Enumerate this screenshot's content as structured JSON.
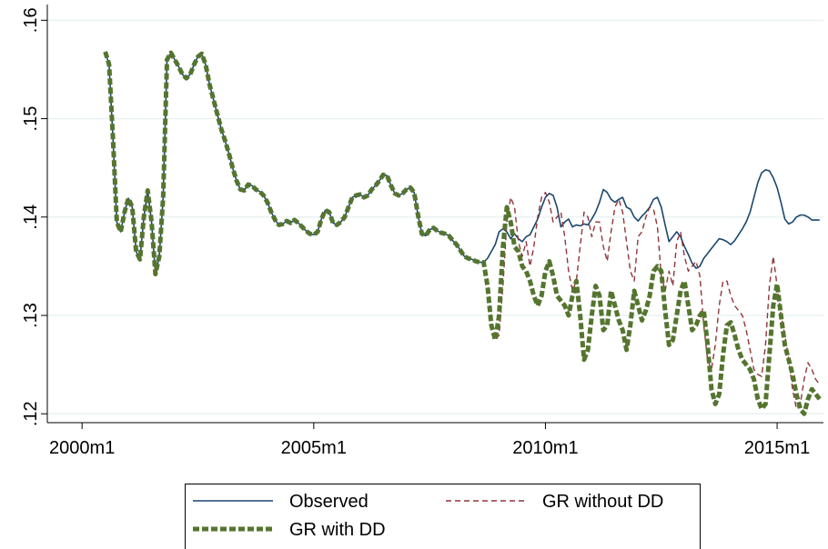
{
  "chart_data": {
    "type": "line",
    "x": [
      "2000m7",
      "2000m8",
      "2000m9",
      "2000m10",
      "2000m11",
      "2000m12",
      "2001m1",
      "2001m2",
      "2001m3",
      "2001m4",
      "2001m5",
      "2001m6",
      "2001m7",
      "2001m8",
      "2001m9",
      "2001m10",
      "2001m11",
      "2001m12",
      "2002m1",
      "2002m2",
      "2002m3",
      "2002m4",
      "2002m5",
      "2002m6",
      "2002m7",
      "2002m8",
      "2002m9",
      "2002m10",
      "2002m11",
      "2002m12",
      "2003m1",
      "2003m2",
      "2003m3",
      "2003m4",
      "2003m5",
      "2003m6",
      "2003m7",
      "2003m8",
      "2003m9",
      "2003m10",
      "2003m11",
      "2003m12",
      "2004m1",
      "2004m2",
      "2004m3",
      "2004m4",
      "2004m5",
      "2004m6",
      "2004m7",
      "2004m8",
      "2004m9",
      "2004m10",
      "2004m11",
      "2004m12",
      "2005m1",
      "2005m2",
      "2005m3",
      "2005m4",
      "2005m5",
      "2005m6",
      "2005m7",
      "2005m8",
      "2005m9",
      "2005m10",
      "2005m11",
      "2005m12",
      "2006m1",
      "2006m2",
      "2006m3",
      "2006m4",
      "2006m5",
      "2006m6",
      "2006m7",
      "2006m8",
      "2006m9",
      "2006m10",
      "2006m11",
      "2006m12",
      "2007m1",
      "2007m2",
      "2007m3",
      "2007m4",
      "2007m5",
      "2007m6",
      "2007m7",
      "2007m8",
      "2007m9",
      "2007m10",
      "2007m11",
      "2007m12",
      "2008m1",
      "2008m2",
      "2008m3",
      "2008m4",
      "2008m5",
      "2008m6",
      "2008m7",
      "2008m8",
      "2008m9",
      "2008m10",
      "2008m11",
      "2008m12",
      "2009m1",
      "2009m2",
      "2009m3",
      "2009m4",
      "2009m5",
      "2009m6",
      "2009m7",
      "2009m8",
      "2009m9",
      "2009m10",
      "2009m11",
      "2009m12",
      "2010m1",
      "2010m2",
      "2010m3",
      "2010m4",
      "2010m5",
      "2010m6",
      "2010m7",
      "2010m8",
      "2010m9",
      "2010m10",
      "2010m11",
      "2010m12",
      "2011m1",
      "2011m2",
      "2011m3",
      "2011m4",
      "2011m5",
      "2011m6",
      "2011m7",
      "2011m8",
      "2011m9",
      "2011m10",
      "2011m11",
      "2011m12",
      "2012m1",
      "2012m2",
      "2012m3",
      "2012m4",
      "2012m5",
      "2012m6",
      "2012m7",
      "2012m8",
      "2012m9",
      "2012m10",
      "2012m11",
      "2012m12",
      "2013m1",
      "2013m2",
      "2013m3",
      "2013m4",
      "2013m5",
      "2013m6",
      "2013m7",
      "2013m8",
      "2013m9",
      "2013m10",
      "2013m11",
      "2013m12",
      "2014m1",
      "2014m2",
      "2014m3",
      "2014m4",
      "2014m5",
      "2014m6",
      "2014m7",
      "2014m8",
      "2014m9",
      "2014m10",
      "2014m11",
      "2014m12",
      "2015m1",
      "2015m2",
      "2015m3",
      "2015m4",
      "2015m5",
      "2015m6",
      "2015m7",
      "2015m8",
      "2015m9",
      "2015m10",
      "2015m11",
      "2015m12"
    ],
    "series": [
      {
        "name": "Observed",
        "color": "#1a476f",
        "style": "solid",
        "values": [
          0.1568,
          0.1555,
          0.148,
          0.1395,
          0.1385,
          0.1405,
          0.1419,
          0.141,
          0.1365,
          0.1357,
          0.14,
          0.1427,
          0.1395,
          0.1342,
          0.136,
          0.142,
          0.156,
          0.1567,
          0.156,
          0.1553,
          0.1545,
          0.1541,
          0.1545,
          0.1555,
          0.1563,
          0.1566,
          0.1555,
          0.1535,
          0.152,
          0.1505,
          0.149,
          0.1478,
          0.1465,
          0.145,
          0.1437,
          0.1428,
          0.1427,
          0.1433,
          0.1432,
          0.1428,
          0.1426,
          0.1422,
          0.1415,
          0.1405,
          0.1397,
          0.1392,
          0.1393,
          0.1396,
          0.1394,
          0.1397,
          0.1394,
          0.139,
          0.1386,
          0.1383,
          0.1382,
          0.1385,
          0.1398,
          0.1407,
          0.1405,
          0.1394,
          0.1392,
          0.1395,
          0.14,
          0.141,
          0.142,
          0.1422,
          0.1423,
          0.142,
          0.1422,
          0.1428,
          0.1432,
          0.1437,
          0.1443,
          0.1442,
          0.1432,
          0.1424,
          0.1422,
          0.1424,
          0.1428,
          0.143,
          0.1425,
          0.1402,
          0.1383,
          0.1381,
          0.1387,
          0.1389,
          0.1386,
          0.1384,
          0.1383,
          0.1381,
          0.1376,
          0.1372,
          0.1366,
          0.136,
          0.1358,
          0.1357,
          0.1355,
          0.1354,
          0.1354,
          0.1358,
          0.1365,
          0.1372,
          0.1385,
          0.1388,
          0.1385,
          0.1378,
          0.1383,
          0.1378,
          0.1375,
          0.138,
          0.1382,
          0.139,
          0.1398,
          0.141,
          0.142,
          0.1424,
          0.1422,
          0.141,
          0.139,
          0.1395,
          0.1398,
          0.139,
          0.1392,
          0.1391,
          0.1393,
          0.1392,
          0.1398,
          0.1405,
          0.1415,
          0.1428,
          0.1425,
          0.1418,
          0.1415,
          0.1418,
          0.142,
          0.141,
          0.1408,
          0.14,
          0.1396,
          0.1401,
          0.1405,
          0.141,
          0.1418,
          0.142,
          0.141,
          0.1392,
          0.1375,
          0.138,
          0.1385,
          0.138,
          0.137,
          0.1362,
          0.1353,
          0.1348,
          0.135,
          0.1358,
          0.1363,
          0.1368,
          0.1373,
          0.1378,
          0.1377,
          0.1375,
          0.1372,
          0.1376,
          0.1382,
          0.1388,
          0.1395,
          0.1405,
          0.142,
          0.1435,
          0.1445,
          0.1448,
          0.1447,
          0.144,
          0.143,
          0.1415,
          0.1398,
          0.1393,
          0.1395,
          0.14,
          0.1402,
          0.1402,
          0.14,
          0.1397,
          0.1397,
          0.1397
        ]
      },
      {
        "name": "GR without DD",
        "color": "#90353b",
        "style": "dashed",
        "values": [
          0.1568,
          0.1555,
          0.148,
          0.1395,
          0.1385,
          0.1405,
          0.1419,
          0.141,
          0.1365,
          0.1357,
          0.14,
          0.1427,
          0.1395,
          0.1342,
          0.136,
          0.142,
          0.156,
          0.1567,
          0.156,
          0.1553,
          0.1545,
          0.1541,
          0.1545,
          0.1555,
          0.1563,
          0.1566,
          0.1555,
          0.1535,
          0.152,
          0.1505,
          0.149,
          0.1478,
          0.1465,
          0.145,
          0.1437,
          0.1428,
          0.1427,
          0.1433,
          0.1432,
          0.1428,
          0.1426,
          0.1422,
          0.1415,
          0.1405,
          0.1397,
          0.1392,
          0.1393,
          0.1396,
          0.1394,
          0.1397,
          0.1394,
          0.139,
          0.1386,
          0.1383,
          0.1382,
          0.1385,
          0.1398,
          0.1407,
          0.1405,
          0.1394,
          0.1392,
          0.1395,
          0.14,
          0.141,
          0.142,
          0.1422,
          0.1423,
          0.142,
          0.1422,
          0.1428,
          0.1432,
          0.1437,
          0.1443,
          0.1442,
          0.1432,
          0.1424,
          0.1422,
          0.1424,
          0.1428,
          0.143,
          0.1425,
          0.1402,
          0.1383,
          0.1381,
          0.1387,
          0.1389,
          0.1386,
          0.1384,
          0.1383,
          0.1381,
          0.1376,
          0.1372,
          0.1366,
          0.136,
          0.1358,
          0.1357,
          0.1355,
          0.1354,
          0.1354,
          0.134,
          0.1295,
          0.1275,
          0.128,
          0.133,
          0.1395,
          0.142,
          0.141,
          0.1375,
          0.136,
          0.1375,
          0.135,
          0.137,
          0.14,
          0.142,
          0.1425,
          0.1415,
          0.1395,
          0.14,
          0.1405,
          0.138,
          0.1345,
          0.1325,
          0.1335,
          0.137,
          0.1405,
          0.14,
          0.138,
          0.1395,
          0.1395,
          0.137,
          0.1355,
          0.1385,
          0.141,
          0.1418,
          0.1405,
          0.1375,
          0.1345,
          0.1335,
          0.138,
          0.1385,
          0.14,
          0.141,
          0.1408,
          0.139,
          0.134,
          0.1325,
          0.1345,
          0.133,
          0.1375,
          0.1385,
          0.136,
          0.1345,
          0.135,
          0.1355,
          0.134,
          0.129,
          0.1255,
          0.1245,
          0.127,
          0.131,
          0.1335,
          0.1335,
          0.132,
          0.131,
          0.1305,
          0.13,
          0.1285,
          0.1265,
          0.1245,
          0.124,
          0.1238,
          0.127,
          0.133,
          0.136,
          0.133,
          0.13,
          0.128,
          0.1255,
          0.1225,
          0.1205,
          0.121,
          0.1235,
          0.1252,
          0.1245,
          0.1235,
          0.123
        ]
      },
      {
        "name": "GR with DD",
        "color": "#55752f",
        "style": "thick-dashed",
        "values": [
          0.1568,
          0.1555,
          0.148,
          0.1395,
          0.1385,
          0.1405,
          0.1419,
          0.141,
          0.1365,
          0.1357,
          0.14,
          0.1427,
          0.1395,
          0.1342,
          0.136,
          0.142,
          0.156,
          0.1567,
          0.156,
          0.1553,
          0.1545,
          0.1541,
          0.1545,
          0.1555,
          0.1563,
          0.1566,
          0.1555,
          0.1535,
          0.152,
          0.1505,
          0.149,
          0.1478,
          0.1465,
          0.145,
          0.1437,
          0.1428,
          0.1427,
          0.1433,
          0.1432,
          0.1428,
          0.1426,
          0.1422,
          0.1415,
          0.1405,
          0.1397,
          0.1392,
          0.1393,
          0.1396,
          0.1394,
          0.1397,
          0.1394,
          0.139,
          0.1386,
          0.1383,
          0.1382,
          0.1385,
          0.1398,
          0.1407,
          0.1405,
          0.1394,
          0.1392,
          0.1395,
          0.14,
          0.141,
          0.142,
          0.1422,
          0.1423,
          0.142,
          0.1422,
          0.1428,
          0.1432,
          0.1437,
          0.1443,
          0.1442,
          0.1432,
          0.1424,
          0.1422,
          0.1424,
          0.1428,
          0.143,
          0.1425,
          0.1402,
          0.1383,
          0.1381,
          0.1387,
          0.1389,
          0.1386,
          0.1384,
          0.1383,
          0.1381,
          0.1376,
          0.1372,
          0.1366,
          0.136,
          0.1358,
          0.1357,
          0.1355,
          0.1354,
          0.1354,
          0.133,
          0.129,
          0.1275,
          0.13,
          0.137,
          0.141,
          0.1395,
          0.137,
          0.1365,
          0.135,
          0.1345,
          0.1335,
          0.132,
          0.131,
          0.132,
          0.1345,
          0.1355,
          0.134,
          0.132,
          0.1315,
          0.131,
          0.13,
          0.132,
          0.1335,
          0.13,
          0.1255,
          0.1265,
          0.13,
          0.133,
          0.132,
          0.1285,
          0.129,
          0.1325,
          0.131,
          0.1295,
          0.1285,
          0.1265,
          0.129,
          0.1325,
          0.131,
          0.1295,
          0.1305,
          0.132,
          0.1345,
          0.135,
          0.1345,
          0.1305,
          0.127,
          0.1275,
          0.13,
          0.1325,
          0.1335,
          0.131,
          0.1285,
          0.129,
          0.13,
          0.1305,
          0.127,
          0.1225,
          0.121,
          0.122,
          0.126,
          0.129,
          0.1293,
          0.128,
          0.1265,
          0.1255,
          0.125,
          0.1245,
          0.1235,
          0.1215,
          0.1205,
          0.121,
          0.126,
          0.131,
          0.1332,
          0.13,
          0.127,
          0.1255,
          0.124,
          0.122,
          0.1205,
          0.12,
          0.1215,
          0.1225,
          0.122,
          0.1215
        ]
      }
    ],
    "xlim": [
      "1999m4",
      "2016m1"
    ],
    "xticks": [
      "2000m1",
      "2005m1",
      "2010m1",
      "2015m1"
    ],
    "ylim": [
      0.1191,
      0.1616
    ],
    "yticks": [
      {
        "value": 0.12,
        "label": ".12"
      },
      {
        "value": 0.13,
        "label": ".13"
      },
      {
        "value": 0.14,
        "label": ".14"
      },
      {
        "value": 0.15,
        "label": ".15"
      },
      {
        "value": 0.16,
        "label": ".16"
      }
    ],
    "grid": true,
    "legend": "bottom"
  }
}
